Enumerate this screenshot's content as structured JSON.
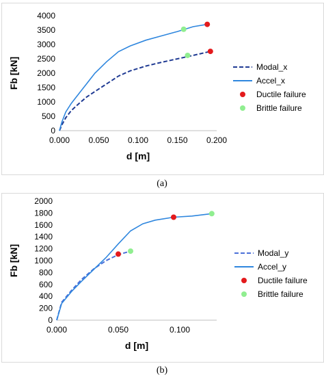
{
  "figures": [
    {
      "caption": "(a)",
      "chart_data": {
        "type": "line",
        "xlabel": "d [m]",
        "ylabel": "Fb [kN]",
        "xlim": [
          0,
          0.2
        ],
        "ylim": [
          0,
          4000
        ],
        "xticks": [
          0,
          0.05,
          0.1,
          0.15,
          0.2
        ],
        "xtick_labels": [
          "0.000",
          "0.050",
          "0.100",
          "0.150",
          "0.200"
        ],
        "yticks": [
          0,
          500,
          1000,
          1500,
          2000,
          2500,
          3000,
          3500,
          4000
        ],
        "ytick_labels": [
          "0",
          "500",
          "1000",
          "1500",
          "2000",
          "2500",
          "3000",
          "3500",
          "4000"
        ],
        "legend_position": "right",
        "series": [
          {
            "name": "Modal_x",
            "style": "dashed",
            "color": "#1f3a93",
            "points": [
              [
                0,
                0
              ],
              [
                0.003,
                200
              ],
              [
                0.008,
                450
              ],
              [
                0.015,
                700
              ],
              [
                0.025,
                950
              ],
              [
                0.035,
                1180
              ],
              [
                0.05,
                1450
              ],
              [
                0.065,
                1720
              ],
              [
                0.075,
                1900
              ],
              [
                0.09,
                2080
              ],
              [
                0.11,
                2250
              ],
              [
                0.13,
                2380
              ],
              [
                0.15,
                2500
              ],
              [
                0.17,
                2620
              ],
              [
                0.192,
                2760
              ]
            ]
          },
          {
            "name": "Accel_x",
            "style": "solid",
            "color": "#2e86de",
            "points": [
              [
                0,
                0
              ],
              [
                0.003,
                300
              ],
              [
                0.008,
                650
              ],
              [
                0.015,
                950
              ],
              [
                0.025,
                1300
              ],
              [
                0.035,
                1650
              ],
              [
                0.045,
                2000
              ],
              [
                0.06,
                2400
              ],
              [
                0.075,
                2750
              ],
              [
                0.09,
                2950
              ],
              [
                0.11,
                3150
              ],
              [
                0.13,
                3300
              ],
              [
                0.15,
                3450
              ],
              [
                0.17,
                3620
              ],
              [
                0.188,
                3700
              ]
            ]
          },
          {
            "name": "Ductile failure",
            "style": "marker",
            "color": "#e31a1c",
            "points": [
              [
                0.188,
                3700
              ],
              [
                0.192,
                2760
              ]
            ]
          },
          {
            "name": "Brittle failure",
            "style": "marker",
            "color": "#90ee90",
            "points": [
              [
                0.158,
                3530
              ],
              [
                0.163,
                2620
              ]
            ]
          }
        ]
      }
    },
    {
      "caption": "(b)",
      "chart_data": {
        "type": "line",
        "xlabel": "d [m]",
        "ylabel": "Fb [kN]",
        "xlim": [
          0,
          0.13
        ],
        "ylim": [
          0,
          2000
        ],
        "xticks": [
          0,
          0.05,
          0.1
        ],
        "xtick_labels": [
          "0.000",
          "0.050",
          "0.100"
        ],
        "yticks": [
          0,
          200,
          400,
          600,
          800,
          1000,
          1200,
          1400,
          1600,
          1800,
          2000
        ],
        "ytick_labels": [
          "0",
          "200",
          "400",
          "600",
          "800",
          "1000",
          "1200",
          "1400",
          "1600",
          "1800",
          "2000"
        ],
        "legend_position": "right",
        "series": [
          {
            "name": "Modal_y",
            "style": "dashed",
            "color": "#4a6fd8",
            "points": [
              [
                0,
                0
              ],
              [
                0.004,
                300
              ],
              [
                0.012,
                500
              ],
              [
                0.02,
                680
              ],
              [
                0.03,
                860
              ],
              [
                0.04,
                1000
              ],
              [
                0.05,
                1100
              ],
              [
                0.06,
                1160
              ]
            ]
          },
          {
            "name": "Accel_y",
            "style": "solid",
            "color": "#2e86de",
            "points": [
              [
                0,
                0
              ],
              [
                0.004,
                280
              ],
              [
                0.012,
                480
              ],
              [
                0.02,
                650
              ],
              [
                0.03,
                850
              ],
              [
                0.04,
                1050
              ],
              [
                0.05,
                1280
              ],
              [
                0.06,
                1500
              ],
              [
                0.07,
                1620
              ],
              [
                0.08,
                1680
              ],
              [
                0.095,
                1730
              ],
              [
                0.11,
                1750
              ],
              [
                0.126,
                1790
              ]
            ]
          },
          {
            "name": "Ductile failure",
            "style": "marker",
            "color": "#e31a1c",
            "points": [
              [
                0.05,
                1110
              ],
              [
                0.095,
                1730
              ]
            ]
          },
          {
            "name": "Brittle failure",
            "style": "marker",
            "color": "#90ee90",
            "points": [
              [
                0.06,
                1160
              ],
              [
                0.126,
                1790
              ]
            ]
          }
        ]
      }
    }
  ]
}
